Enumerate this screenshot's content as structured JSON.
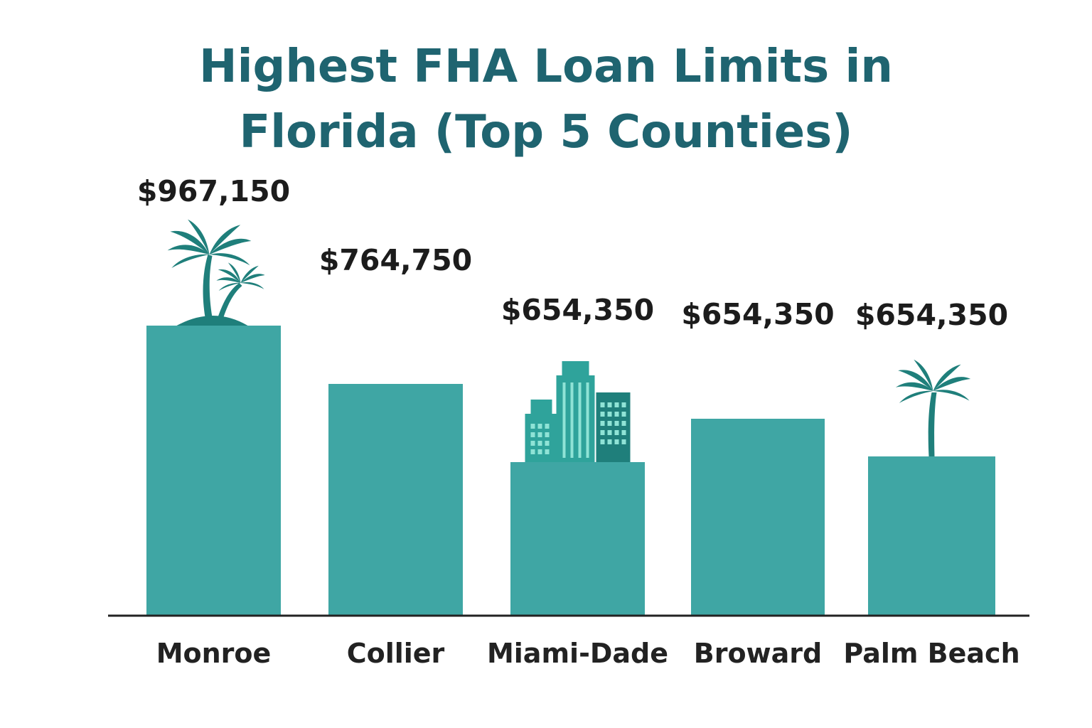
{
  "title_line1": "Highest FHA Loan Limits in",
  "title_line2": "Florida (Top 5 Counties)",
  "colors": {
    "title": "#1f6470",
    "bar": "#3fa6a4",
    "icon_dark": "#1f7f7b",
    "icon_mid": "#2fa39b",
    "icon_light": "#8fe3d6",
    "axis": "#222222"
  },
  "chart_data": {
    "type": "bar",
    "title": "Highest FHA Loan Limits in Florida (Top 5 Counties)",
    "categories": [
      "Monroe",
      "Collier",
      "Miami-Dade",
      "Broward",
      "Palm Beach"
    ],
    "values": [
      967150,
      764750,
      654350,
      654350,
      654350
    ],
    "value_labels": [
      "$967,150",
      "$764,750",
      "$654,350",
      "$654,350",
      "$654,350"
    ],
    "icons": [
      "palm-trees-island-icon",
      null,
      "skyscrapers-icon",
      null,
      "palm-tree-icon"
    ],
    "xlabel": "",
    "ylabel": "",
    "grid": false,
    "legend": "none"
  }
}
